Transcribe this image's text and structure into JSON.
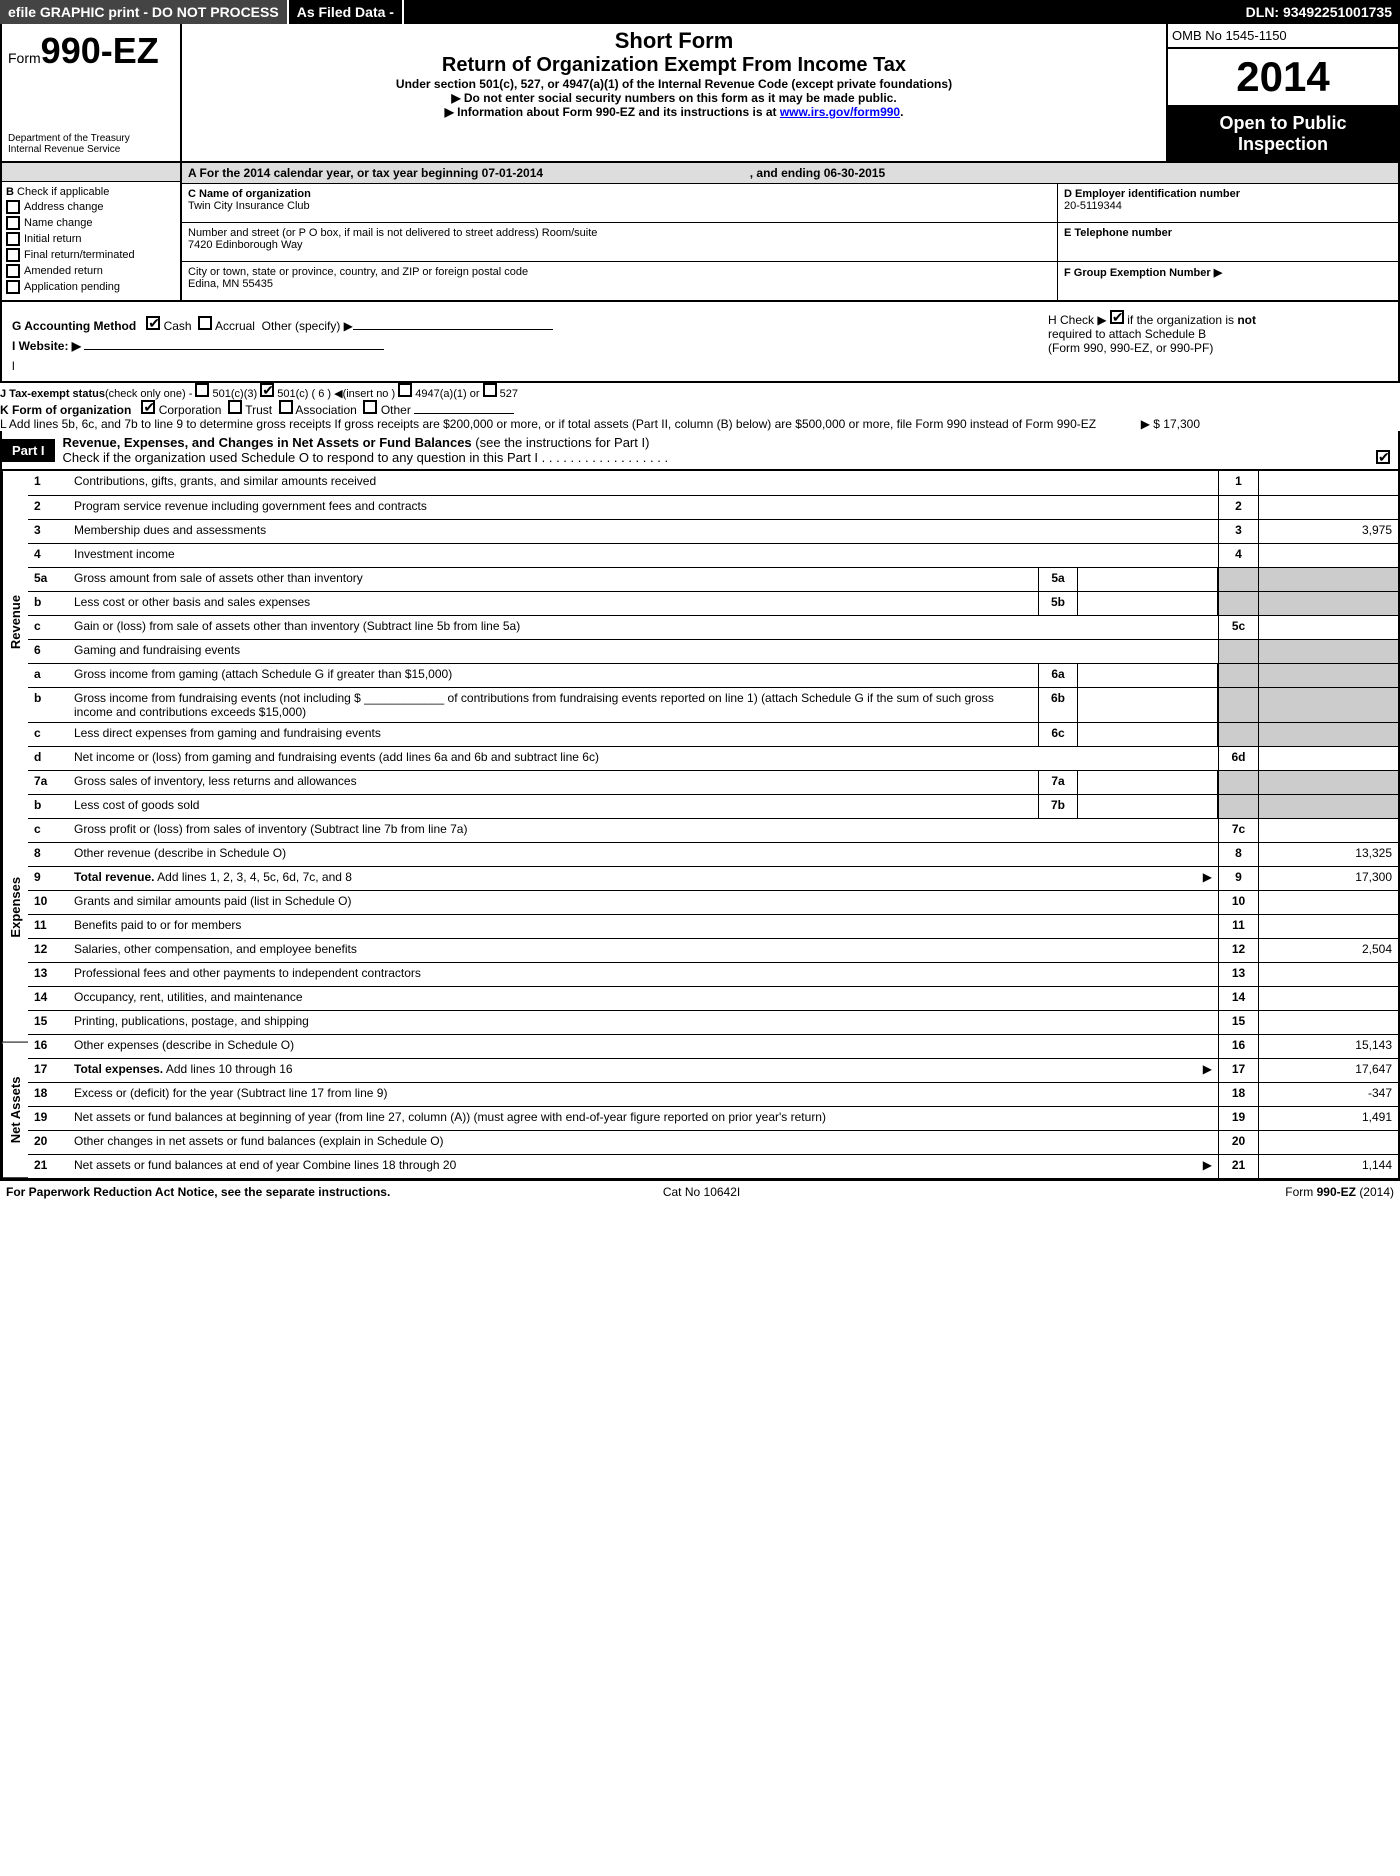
{
  "topbar": {
    "efile": "efile GRAPHIC print - DO NOT PROCESS",
    "asfiled": "As Filed Data -",
    "dln": "DLN: 93492251001735"
  },
  "header": {
    "form_prefix": "Form",
    "form_num": "990-EZ",
    "dept1": "Department of the Treasury",
    "dept2": "Internal Revenue Service",
    "title1": "Short Form",
    "title2": "Return of Organization Exempt From Income Tax",
    "sub": "Under section 501(c), 527, or 4947(a)(1) of the Internal Revenue Code (except private foundations)",
    "note1": "▶ Do not enter social security numbers on this form as it may be made public.",
    "note2_pre": "▶ Information about Form 990-EZ and its instructions is at ",
    "note2_link": "www.irs.gov/form990",
    "note2_post": ".",
    "omb": "OMB No 1545-1150",
    "year": "2014",
    "open1": "Open to Public",
    "open2": "Inspection"
  },
  "sectionA": {
    "lineA_pre": "A  For the 2014 calendar year, or tax year beginning ",
    "begin": "07-01-2014",
    "lineA_mid": " , and ending ",
    "end": "06-30-2015",
    "B_label": "B",
    "B_text": "Check if applicable",
    "b_items": [
      "Address change",
      "Name change",
      "Initial return",
      "Final return/terminated",
      "Amended return",
      "Application pending"
    ],
    "C_label": "C Name of organization",
    "C_val": "Twin City Insurance Club",
    "C_street_label": "Number and street (or P O box, if mail is not delivered to street address) Room/suite",
    "C_street": "7420 Edinborough Way",
    "C_city_label": "City or town, state or province, country, and ZIP or foreign postal code",
    "C_city": "Edina, MN  55435",
    "D_label": "D Employer identification number",
    "D_val": "20-5119344",
    "E_label": "E Telephone number",
    "E_val": "",
    "F_label": "F Group Exemption Number  ▶",
    "F_val": ""
  },
  "ghijkl": {
    "G_label": "G Accounting Method",
    "G_cash": "Cash",
    "G_accrual": "Accrual",
    "G_other": "Other (specify) ▶",
    "H_text1": "H  Check ▶",
    "H_text2": "if the organization is",
    "H_not": "not",
    "H_text3": "required to attach Schedule B",
    "H_text4": "(Form 990, 990-EZ, or 990-PF)",
    "I_label": "I Website: ▶",
    "J_label": "J Tax-exempt status",
    "J_note": "(check only one) -",
    "J_1": "501(c)(3)",
    "J_2": "501(c) ( 6 ) ◀(insert no )",
    "J_3": "4947(a)(1) or",
    "J_4": "527",
    "K_label": "K Form of organization",
    "K_1": "Corporation",
    "K_2": "Trust",
    "K_3": "Association",
    "K_4": "Other",
    "L_text": "L Add lines 5b, 6c, and 7b to line 9 to determine gross receipts  If gross receipts are $200,000 or more, or if total assets (Part II, column (B) below) are $500,000 or more, file Form 990 instead of Form 990-EZ",
    "L_val": "▶ $ 17,300"
  },
  "part1": {
    "label": "Part I",
    "title": "Revenue, Expenses, and Changes in Net Assets or Fund Balances",
    "title_note": "(see the instructions for Part I)",
    "subnote": "Check if the organization used Schedule O to respond to any question in this Part I  .  .  .  .  .  .  .  .  .  .  .  .  .  .  .  .  .  ."
  },
  "sides": {
    "rev": "Revenue",
    "exp": "Expenses",
    "net": "Net Assets"
  },
  "rows": {
    "r1": {
      "n": "1",
      "d": "Contributions, gifts, grants, and similar amounts received",
      "box": "1",
      "val": ""
    },
    "r2": {
      "n": "2",
      "d": "Program service revenue including government fees and contracts",
      "box": "2",
      "val": ""
    },
    "r3": {
      "n": "3",
      "d": "Membership dues and assessments",
      "box": "3",
      "val": "3,975"
    },
    "r4": {
      "n": "4",
      "d": "Investment income",
      "box": "4",
      "val": ""
    },
    "r5a": {
      "n": "5a",
      "d": "Gross amount from sale of assets other than inventory",
      "ibox": "5a",
      "ival": ""
    },
    "r5b": {
      "n": "b",
      "d": "Less  cost or other basis and sales expenses",
      "ibox": "5b",
      "ival": ""
    },
    "r5c": {
      "n": "c",
      "d": "Gain or (loss) from sale of assets other than inventory (Subtract line 5b from line 5a)",
      "box": "5c",
      "val": ""
    },
    "r6": {
      "n": "6",
      "d": "Gaming and fundraising events"
    },
    "r6a": {
      "n": "a",
      "d": "Gross income from gaming (attach Schedule G if greater than $15,000)",
      "ibox": "6a",
      "ival": ""
    },
    "r6b": {
      "n": "b",
      "d": "Gross income from fundraising events (not including $ ____________ of contributions from fundraising events reported on line 1) (attach Schedule G if the sum of such gross income and contributions exceeds $15,000)",
      "ibox": "6b",
      "ival": ""
    },
    "r6c": {
      "n": "c",
      "d": "Less  direct expenses from gaming and fundraising events",
      "ibox": "6c",
      "ival": ""
    },
    "r6d": {
      "n": "d",
      "d": "Net income or (loss) from gaming and fundraising events (add lines 6a and 6b and subtract line 6c)",
      "box": "6d",
      "val": ""
    },
    "r7a": {
      "n": "7a",
      "d": "Gross sales of inventory, less returns and allowances",
      "ibox": "7a",
      "ival": ""
    },
    "r7b": {
      "n": "b",
      "d": "Less  cost of goods sold",
      "ibox": "7b",
      "ival": ""
    },
    "r7c": {
      "n": "c",
      "d": "Gross profit or (loss) from sales of inventory (Subtract line 7b from line 7a)",
      "box": "7c",
      "val": ""
    },
    "r8": {
      "n": "8",
      "d": "Other revenue (describe in Schedule O)",
      "box": "8",
      "val": "13,325"
    },
    "r9": {
      "n": "9",
      "d": "Total revenue.",
      "d2": " Add lines 1, 2, 3, 4, 5c, 6d, 7c, and 8",
      "box": "9",
      "val": "17,300",
      "arrow": true,
      "bold": true
    },
    "r10": {
      "n": "10",
      "d": "Grants and similar amounts paid (list in Schedule O)",
      "box": "10",
      "val": ""
    },
    "r11": {
      "n": "11",
      "d": "Benefits paid to or for members",
      "box": "11",
      "val": ""
    },
    "r12": {
      "n": "12",
      "d": "Salaries, other compensation, and employee benefits",
      "box": "12",
      "val": "2,504"
    },
    "r13": {
      "n": "13",
      "d": "Professional fees and other payments to independent contractors",
      "box": "13",
      "val": ""
    },
    "r14": {
      "n": "14",
      "d": "Occupancy, rent, utilities, and maintenance",
      "box": "14",
      "val": ""
    },
    "r15": {
      "n": "15",
      "d": "Printing, publications, postage, and shipping",
      "box": "15",
      "val": ""
    },
    "r16": {
      "n": "16",
      "d": "Other expenses (describe in Schedule O)",
      "box": "16",
      "val": "15,143"
    },
    "r17": {
      "n": "17",
      "d": "Total expenses.",
      "d2": " Add lines 10 through 16",
      "box": "17",
      "val": "17,647",
      "arrow": true,
      "bold": true
    },
    "r18": {
      "n": "18",
      "d": "Excess or (deficit) for the year (Subtract line 17 from line 9)",
      "box": "18",
      "val": "-347"
    },
    "r19": {
      "n": "19",
      "d": "Net assets or fund balances at beginning of year (from line 27, column (A)) (must agree with end-of-year figure reported on prior year's return)",
      "box": "19",
      "val": "1,491"
    },
    "r20": {
      "n": "20",
      "d": "Other changes in net assets or fund balances (explain in Schedule O)",
      "box": "20",
      "val": ""
    },
    "r21": {
      "n": "21",
      "d": "Net assets or fund balances at end of year  Combine lines 18 through 20",
      "box": "21",
      "val": "1,144",
      "arrow": true
    }
  },
  "footer": {
    "left": "For Paperwork Reduction Act Notice, see the separate instructions.",
    "mid": "Cat No  10642I",
    "right": "Form",
    "right_b": "990-EZ",
    "right_yr": "(2014)"
  }
}
